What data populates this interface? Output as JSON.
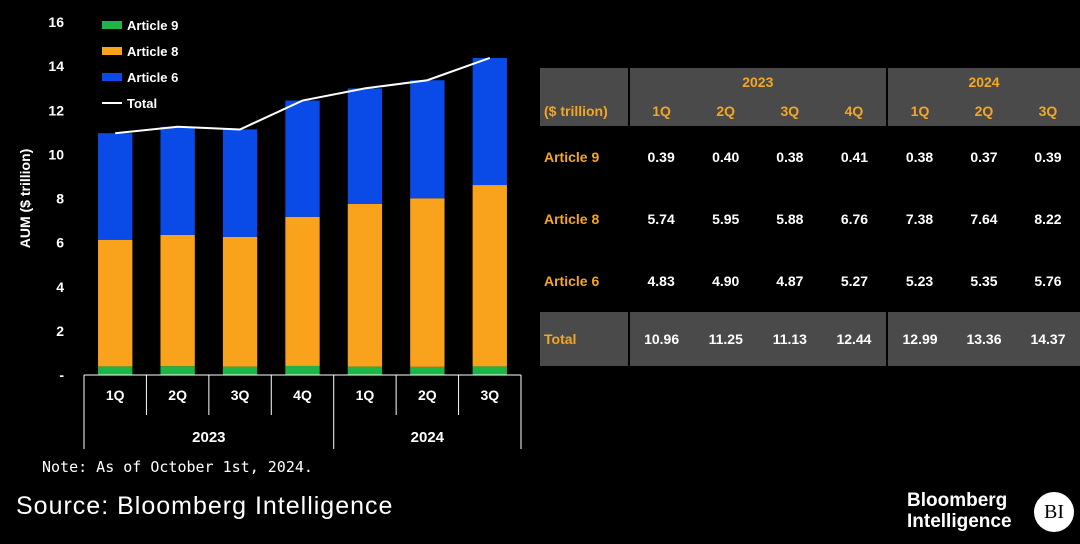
{
  "chart_data": {
    "type": "bar",
    "stacked": true,
    "ylabel": "AUM ($ trillion)",
    "ylim": [
      0,
      16
    ],
    "yticks": [
      "-",
      "2",
      "4",
      "6",
      "8",
      "10",
      "12",
      "14",
      "16"
    ],
    "categories": [
      "1Q",
      "2Q",
      "3Q",
      "4Q",
      "1Q",
      "2Q",
      "3Q"
    ],
    "year_groups": [
      {
        "label": "2023",
        "count": 4
      },
      {
        "label": "2024",
        "count": 3
      }
    ],
    "series": [
      {
        "name": "Article 9",
        "color": "#1db548",
        "values": [
          0.39,
          0.4,
          0.38,
          0.41,
          0.38,
          0.37,
          0.39
        ]
      },
      {
        "name": "Article 8",
        "color": "#f9a21b",
        "values": [
          5.74,
          5.95,
          5.88,
          6.76,
          7.38,
          7.64,
          8.22
        ]
      },
      {
        "name": "Article 6",
        "color": "#0a4be8",
        "values": [
          4.83,
          4.9,
          4.87,
          5.27,
          5.23,
          5.35,
          5.76
        ]
      }
    ],
    "line": {
      "name": "Total",
      "color": "#ffffff",
      "values": [
        10.96,
        11.25,
        11.13,
        12.44,
        12.99,
        13.36,
        14.37
      ]
    },
    "legend": [
      {
        "name": "Article 9",
        "color": "#1db548"
      },
      {
        "name": "Article 8",
        "color": "#f9a21b"
      },
      {
        "name": "Article 6",
        "color": "#0a4be8"
      },
      {
        "name": "Total",
        "color": "#ffffff",
        "kind": "line"
      }
    ],
    "legend_position": "top-left",
    "grid": false
  },
  "table": {
    "unit_label": "($ trillion)",
    "years": [
      "2023",
      "2024"
    ],
    "quarters": [
      "1Q",
      "2Q",
      "3Q",
      "4Q",
      "1Q",
      "2Q",
      "3Q"
    ],
    "rows": [
      {
        "label": "Article 9",
        "values": [
          "0.39",
          "0.40",
          "0.38",
          "0.41",
          "0.38",
          "0.37",
          "0.39"
        ]
      },
      {
        "label": "Article 8",
        "values": [
          "5.74",
          "5.95",
          "5.88",
          "6.76",
          "7.38",
          "7.64",
          "8.22"
        ]
      },
      {
        "label": "Article 6",
        "values": [
          "4.83",
          "4.90",
          "4.87",
          "5.27",
          "5.23",
          "5.35",
          "5.76"
        ]
      },
      {
        "label": "Total",
        "values": [
          "10.96",
          "11.25",
          "11.13",
          "12.44",
          "12.99",
          "13.36",
          "14.37"
        ]
      }
    ]
  },
  "note": "Note: As of October 1st, 2024.",
  "source": "Source: Bloomberg Intelligence",
  "brand": {
    "line1": "Bloomberg",
    "line2": "Intelligence",
    "badge": "BI"
  }
}
